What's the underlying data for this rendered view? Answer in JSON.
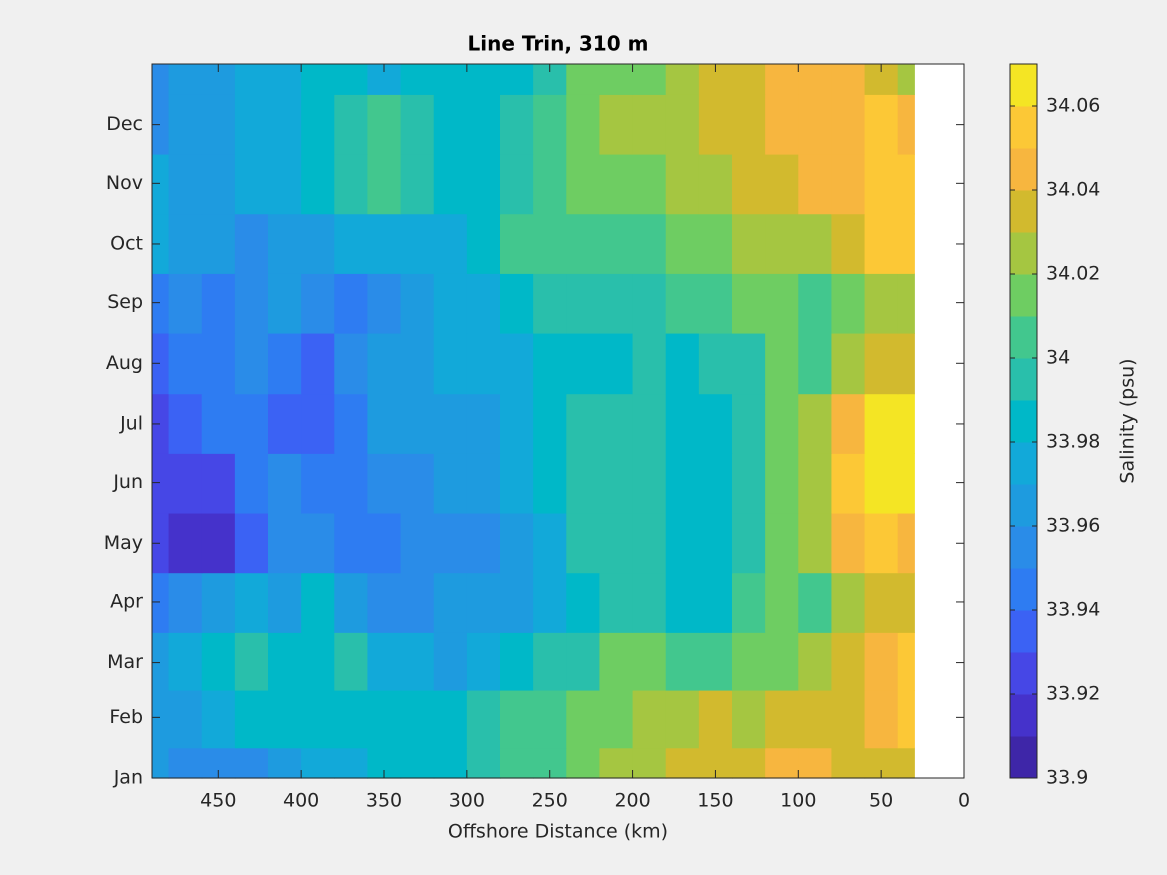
{
  "chart_data": {
    "type": "contourf",
    "title": "Line Trin, 310 m",
    "xlabel": "Offshore Distance (km)",
    "colorbar_label": "Salinity (psu)",
    "xlim": [
      490,
      0
    ],
    "xticks": [
      450,
      400,
      350,
      300,
      250,
      200,
      150,
      100,
      50,
      0
    ],
    "ylim": [
      1,
      366
    ],
    "yticks": [
      {
        "value": 1,
        "label": "Jan"
      },
      {
        "value": 32,
        "label": "Feb"
      },
      {
        "value": 60,
        "label": "Mar"
      },
      {
        "value": 91,
        "label": "Apr"
      },
      {
        "value": 121,
        "label": "May"
      },
      {
        "value": 152,
        "label": "Jun"
      },
      {
        "value": 182,
        "label": "Jul"
      },
      {
        "value": 213,
        "label": "Aug"
      },
      {
        "value": 244,
        "label": "Sep"
      },
      {
        "value": 274,
        "label": "Oct"
      },
      {
        "value": 305,
        "label": "Nov"
      },
      {
        "value": 335,
        "label": "Dec"
      }
    ],
    "clim": [
      33.9,
      34.07
    ],
    "cticks": [
      33.9,
      33.92,
      33.94,
      33.96,
      33.98,
      34,
      34.02,
      34.04,
      34.06
    ],
    "colors": [
      "#3e26a8",
      "#4532cb",
      "#4647e6",
      "#3b62f4",
      "#2e7cf2",
      "#2a8ce8",
      "#1e9bdf",
      "#12a9d9",
      "#00b8c8",
      "#29bfab",
      "#42c78e",
      "#6ecd62",
      "#a5c641",
      "#d2ba2e",
      "#f7b63f",
      "#fcc836",
      "#f4e524"
    ],
    "x": [
      490,
      470,
      450,
      430,
      410,
      390,
      370,
      350,
      330,
      310,
      290,
      270,
      250,
      230,
      210,
      190,
      170,
      150,
      130,
      110,
      90,
      70,
      50,
      30
    ],
    "y": [
      1,
      32,
      60,
      91,
      121,
      152,
      182,
      213,
      244,
      274,
      305,
      335,
      366
    ],
    "z": [
      [
        33.96,
        33.95,
        33.95,
        33.95,
        33.96,
        33.97,
        33.97,
        33.98,
        33.98,
        33.98,
        33.99,
        34.0,
        34.0,
        34.01,
        34.02,
        34.02,
        34.03,
        34.03,
        34.03,
        34.04,
        34.04,
        34.03,
        34.03,
        34.03
      ],
      [
        33.96,
        33.96,
        33.97,
        33.98,
        33.98,
        33.98,
        33.98,
        33.98,
        33.98,
        33.98,
        33.99,
        34.0,
        34.0,
        34.01,
        34.01,
        34.02,
        34.02,
        34.03,
        34.02,
        34.03,
        34.03,
        34.03,
        34.04,
        34.05
      ],
      [
        33.96,
        33.97,
        33.98,
        33.99,
        33.98,
        33.98,
        33.99,
        33.97,
        33.97,
        33.96,
        33.97,
        33.98,
        33.99,
        33.99,
        34.01,
        34.01,
        34.0,
        34.0,
        34.01,
        34.01,
        34.02,
        34.03,
        34.04,
        34.05
      ],
      [
        33.94,
        33.95,
        33.96,
        33.97,
        33.96,
        33.98,
        33.96,
        33.95,
        33.95,
        33.96,
        33.96,
        33.96,
        33.97,
        33.98,
        33.99,
        33.99,
        33.98,
        33.98,
        34.0,
        34.01,
        34.0,
        34.02,
        34.03,
        34.03
      ],
      [
        33.92,
        33.91,
        33.91,
        33.93,
        33.95,
        33.95,
        33.94,
        33.94,
        33.95,
        33.95,
        33.95,
        33.96,
        33.97,
        33.99,
        33.99,
        33.99,
        33.98,
        33.98,
        33.99,
        34.01,
        34.02,
        34.04,
        34.05,
        34.04
      ],
      [
        33.92,
        33.92,
        33.92,
        33.94,
        33.95,
        33.94,
        33.94,
        33.95,
        33.95,
        33.96,
        33.96,
        33.97,
        33.98,
        33.99,
        33.99,
        33.99,
        33.98,
        33.98,
        33.99,
        34.01,
        34.02,
        34.05,
        34.06,
        34.06
      ],
      [
        33.92,
        33.93,
        33.94,
        33.94,
        33.93,
        33.93,
        33.94,
        33.96,
        33.96,
        33.96,
        33.96,
        33.97,
        33.98,
        33.99,
        33.99,
        33.99,
        33.98,
        33.98,
        33.99,
        34.01,
        34.02,
        34.04,
        34.06,
        34.06
      ],
      [
        33.93,
        33.94,
        33.94,
        33.95,
        33.94,
        33.93,
        33.95,
        33.96,
        33.96,
        33.97,
        33.97,
        33.97,
        33.98,
        33.98,
        33.98,
        33.99,
        33.98,
        33.99,
        33.99,
        34.01,
        34.0,
        34.02,
        34.03,
        34.03
      ],
      [
        33.94,
        33.95,
        33.94,
        33.95,
        33.96,
        33.95,
        33.94,
        33.95,
        33.96,
        33.97,
        33.97,
        33.98,
        33.99,
        33.99,
        33.99,
        33.99,
        34.0,
        34.0,
        34.01,
        34.01,
        34.0,
        34.01,
        34.02,
        34.02
      ],
      [
        33.97,
        33.96,
        33.96,
        33.95,
        33.96,
        33.96,
        33.97,
        33.97,
        33.97,
        33.97,
        33.98,
        34.0,
        34.0,
        34.0,
        34.0,
        34.0,
        34.01,
        34.01,
        34.02,
        34.02,
        34.02,
        34.03,
        34.05,
        34.05
      ],
      [
        33.97,
        33.96,
        33.96,
        33.97,
        33.97,
        33.98,
        33.99,
        34.0,
        33.99,
        33.98,
        33.98,
        33.99,
        34.0,
        34.01,
        34.01,
        34.01,
        34.02,
        34.02,
        34.03,
        34.03,
        34.04,
        34.04,
        34.05,
        34.05
      ],
      [
        33.95,
        33.96,
        33.96,
        33.97,
        33.97,
        33.98,
        33.99,
        34.0,
        33.99,
        33.98,
        33.98,
        33.99,
        34.0,
        34.01,
        34.02,
        34.02,
        34.02,
        34.03,
        34.03,
        34.04,
        34.04,
        34.04,
        34.05,
        34.04
      ],
      [
        33.95,
        33.96,
        33.96,
        33.97,
        33.97,
        33.98,
        33.98,
        33.97,
        33.98,
        33.98,
        33.98,
        33.98,
        33.99,
        34.01,
        34.01,
        34.01,
        34.02,
        34.03,
        34.03,
        34.04,
        34.04,
        34.04,
        34.03,
        34.02
      ]
    ]
  }
}
